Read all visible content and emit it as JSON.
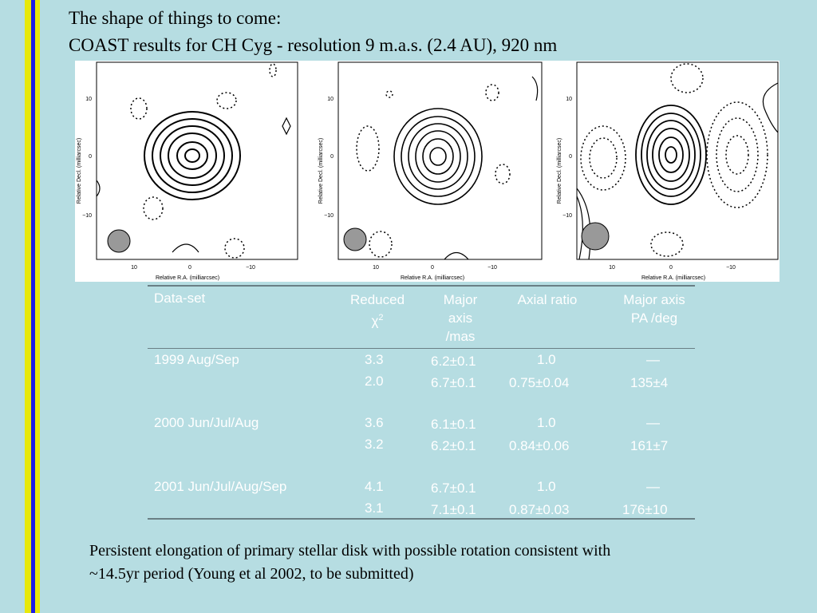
{
  "slide": {
    "title_line1": "The shape of things to come:",
    "title_line2": "COAST results for CH Cyg - resolution 9 m.a.s. (2.4 AU), 920 nm",
    "colors": {
      "background": "#b6dde2",
      "stripe_yellow": "#e8e80a",
      "stripe_blue": "#1e1ee6"
    }
  },
  "images": {
    "ylabel": "Relative Decl. (milliarcsec)",
    "xlabel": "Relative R.A. (milliarcsec)",
    "yticks": [
      "10",
      "0",
      "−10"
    ],
    "xticks": [
      "10",
      "0",
      "−10"
    ]
  },
  "table": {
    "headers": {
      "dataset": "Data-set",
      "chi_line1": "Reduced",
      "chi_symbol": "χ",
      "chi_sup": "2",
      "major_line1": "Major",
      "major_line2": "axis",
      "major_line3": "/mas",
      "axial": "Axial ratio",
      "pa_line1": "Major axis",
      "pa_line2": "PA /deg"
    },
    "groups": [
      {
        "dataset": "1999 Aug/Sep",
        "rows": [
          {
            "chi2": "3.3",
            "major": "6.2±0.1",
            "axial": "1.0",
            "pa": "—"
          },
          {
            "chi2": "2.0",
            "major": "6.7±0.1",
            "axial": "0.75±0.04",
            "pa": "135±4"
          }
        ]
      },
      {
        "dataset": "2000 Jun/Jul/Aug",
        "rows": [
          {
            "chi2": "3.6",
            "major": "6.1±0.1",
            "axial": "1.0",
            "pa": "—"
          },
          {
            "chi2": "3.2",
            "major": "6.2±0.1",
            "axial": "0.84±0.06",
            "pa": "161±7"
          }
        ]
      },
      {
        "dataset": "2001 Jun/Jul/Aug/Sep",
        "rows": [
          {
            "chi2": "4.1",
            "major": "6.7±0.1",
            "axial": "1.0",
            "pa": "—"
          },
          {
            "chi2": "3.1",
            "major": "7.1±0.1",
            "axial": "0.87±0.03",
            "pa": "176±10"
          }
        ]
      }
    ]
  },
  "note": {
    "line1": "Persistent elongation of primary stellar disk with possible rotation consistent with",
    "line2": "~14.5yr period (Young et al 2002, to be submitted)"
  }
}
